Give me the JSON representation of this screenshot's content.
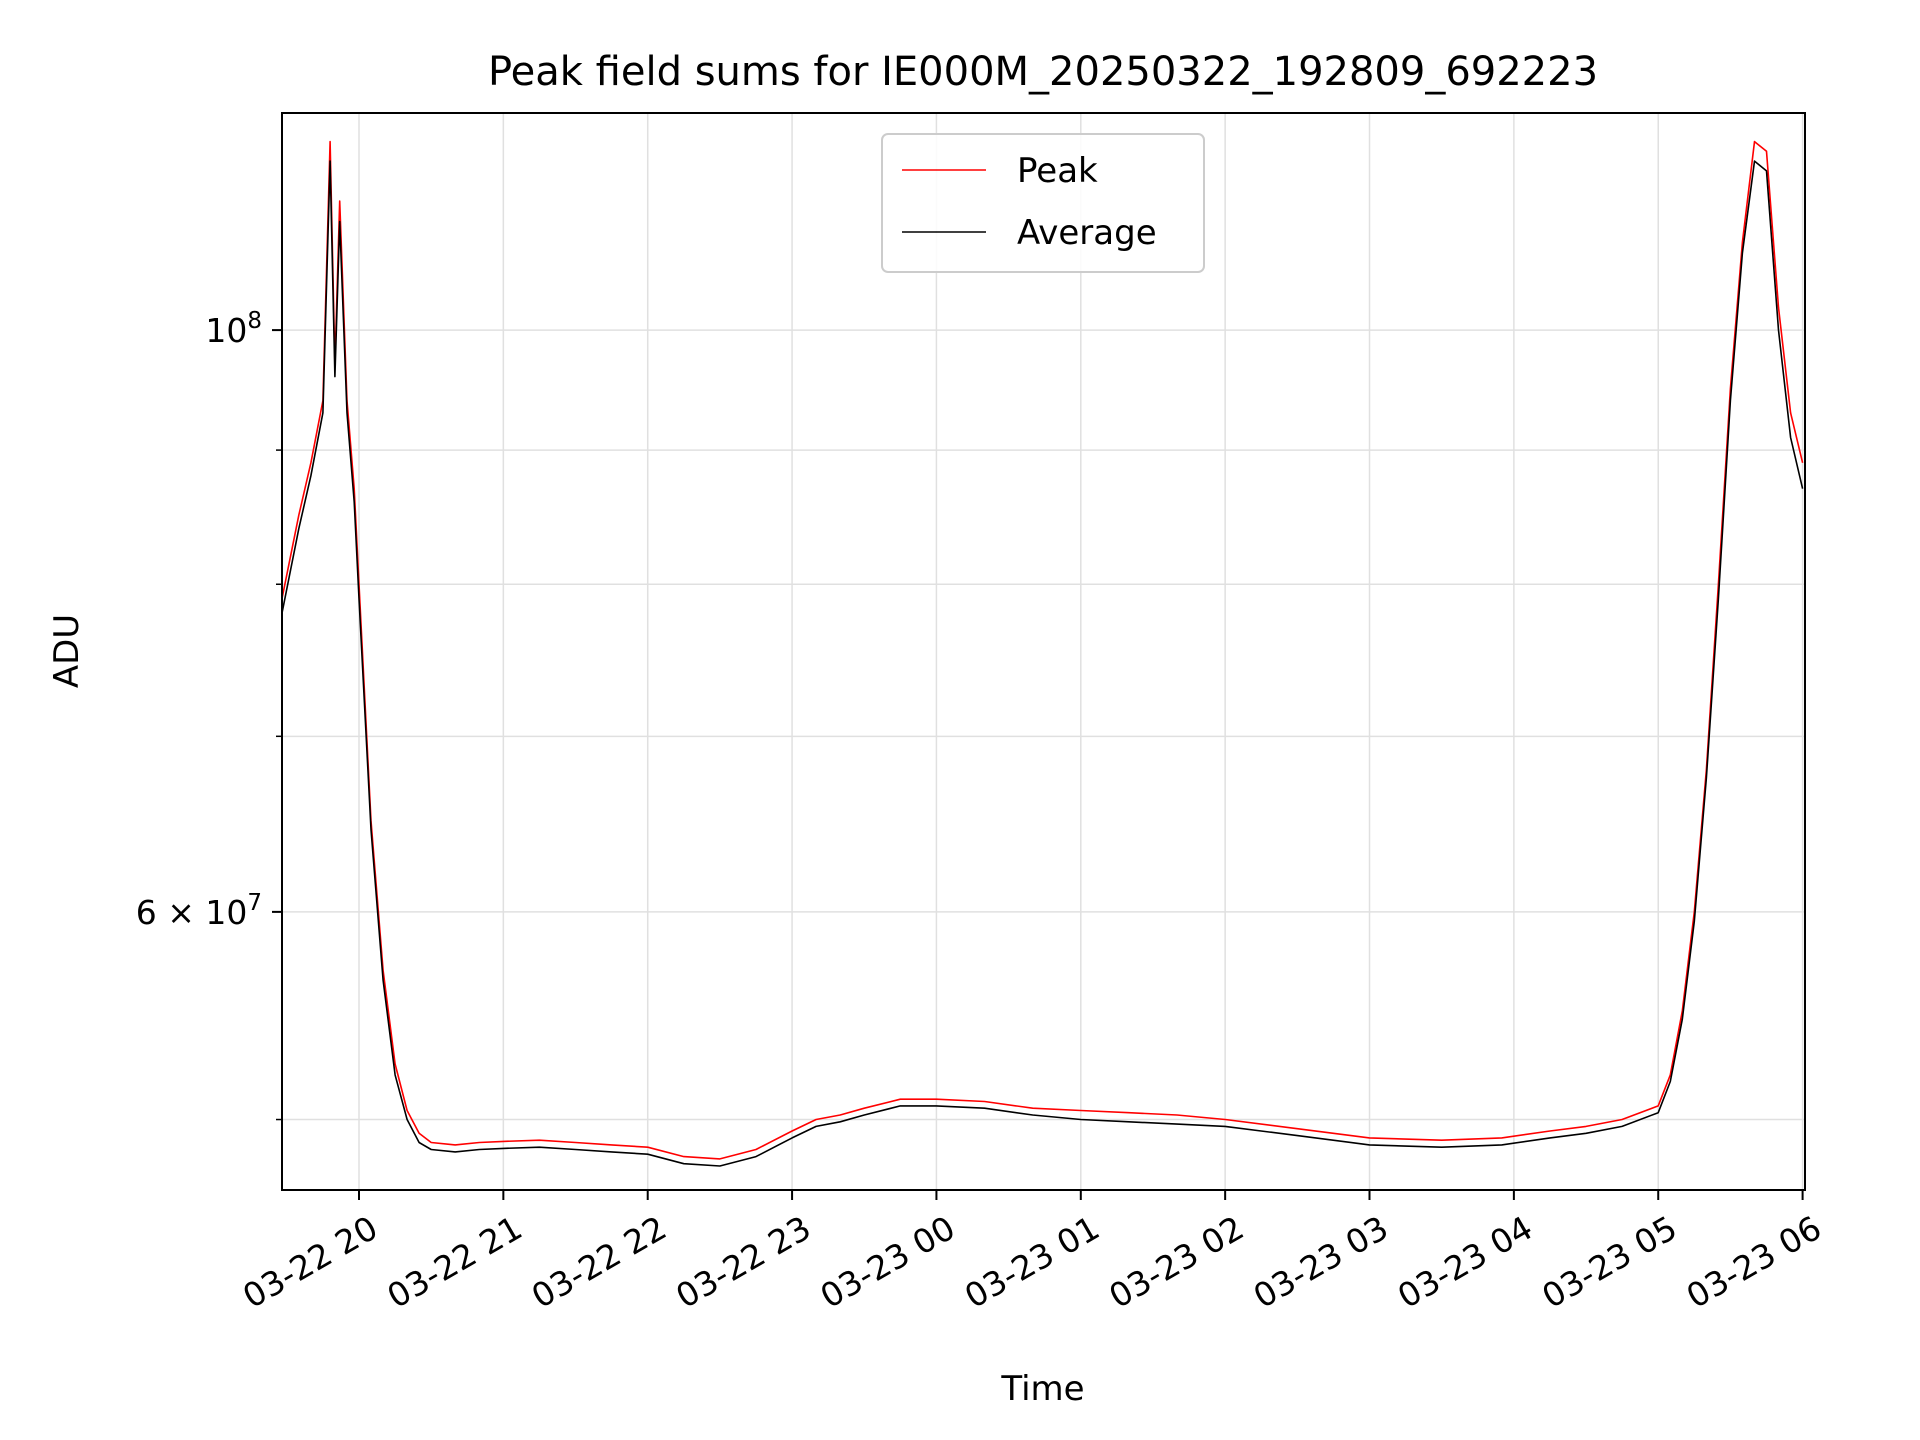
{
  "chart_data": {
    "type": "line",
    "title": "Peak field sums for IE000M_20250322_192809_692223",
    "xlabel": "Time",
    "ylabel": "ADU",
    "yscale": "log",
    "ylim": [
      47000000,
      121000000
    ],
    "xlim": [
      "2025-03-22T19:28",
      "2025-03-23T06:01"
    ],
    "grid": true,
    "legend_position": "upper center",
    "x_ticks": [
      {
        "t": "2025-03-22T20:00",
        "label": "03-22 20"
      },
      {
        "t": "2025-03-22T21:00",
        "label": "03-22 21"
      },
      {
        "t": "2025-03-22T22:00",
        "label": "03-22 22"
      },
      {
        "t": "2025-03-22T23:00",
        "label": "03-22 23"
      },
      {
        "t": "2025-03-23T00:00",
        "label": "03-23 00"
      },
      {
        "t": "2025-03-23T01:00",
        "label": "03-23 01"
      },
      {
        "t": "2025-03-23T02:00",
        "label": "03-23 02"
      },
      {
        "t": "2025-03-23T03:00",
        "label": "03-23 03"
      },
      {
        "t": "2025-03-23T04:00",
        "label": "03-23 04"
      },
      {
        "t": "2025-03-23T05:00",
        "label": "03-23 05"
      },
      {
        "t": "2025-03-23T06:00",
        "label": "03-23 06"
      }
    ],
    "y_major_ticks": [
      {
        "value": 60000000,
        "label": "6 × 10",
        "exp": "7"
      },
      {
        "value": 100000000,
        "label": "10",
        "exp": "8"
      }
    ],
    "y_minor_ticks": [
      50000000,
      70000000,
      80000000,
      90000000
    ],
    "series": [
      {
        "name": "Peak",
        "color": "#ff0000",
        "x": [
          "2025-03-22T19:28",
          "2025-03-22T19:35",
          "2025-03-22T19:40",
          "2025-03-22T19:45",
          "2025-03-22T19:48",
          "2025-03-22T19:50",
          "2025-03-22T19:52",
          "2025-03-22T19:55",
          "2025-03-22T19:58",
          "2025-03-22T20:00",
          "2025-03-22T20:05",
          "2025-03-22T20:10",
          "2025-03-22T20:15",
          "2025-03-22T20:20",
          "2025-03-22T20:25",
          "2025-03-22T20:30",
          "2025-03-22T20:40",
          "2025-03-22T20:50",
          "2025-03-22T21:00",
          "2025-03-22T21:15",
          "2025-03-22T21:30",
          "2025-03-22T21:45",
          "2025-03-22T22:00",
          "2025-03-22T22:15",
          "2025-03-22T22:30",
          "2025-03-22T22:45",
          "2025-03-22T23:00",
          "2025-03-22T23:10",
          "2025-03-22T23:20",
          "2025-03-22T23:30",
          "2025-03-22T23:45",
          "2025-03-23T00:00",
          "2025-03-23T00:20",
          "2025-03-23T00:40",
          "2025-03-23T01:00",
          "2025-03-23T01:20",
          "2025-03-23T01:40",
          "2025-03-23T02:00",
          "2025-03-23T02:30",
          "2025-03-23T03:00",
          "2025-03-23T03:30",
          "2025-03-23T03:55",
          "2025-03-23T04:15",
          "2025-03-23T04:30",
          "2025-03-23T04:45",
          "2025-03-23T05:00",
          "2025-03-23T05:05",
          "2025-03-23T05:10",
          "2025-03-23T05:15",
          "2025-03-23T05:20",
          "2025-03-23T05:25",
          "2025-03-23T05:30",
          "2025-03-23T05:35",
          "2025-03-23T05:40",
          "2025-03-23T05:45",
          "2025-03-23T05:50",
          "2025-03-23T05:55",
          "2025-03-23T06:00"
        ],
        "y": [
          79000000,
          85000000,
          89000000,
          94000000,
          118000000,
          97000000,
          112000000,
          94000000,
          87000000,
          80000000,
          65000000,
          57000000,
          52500000,
          50400000,
          49400000,
          49000000,
          48900000,
          49000000,
          49050000,
          49100000,
          49000000,
          48900000,
          48800000,
          48400000,
          48300000,
          48700000,
          49500000,
          50000000,
          50200000,
          50500000,
          50900000,
          50900000,
          50800000,
          50500000,
          50400000,
          50300000,
          50200000,
          50000000,
          49600000,
          49200000,
          49100000,
          49200000,
          49500000,
          49700000,
          50000000,
          50600000,
          52000000,
          55000000,
          60000000,
          68000000,
          80000000,
          95000000,
          108000000,
          118000000,
          117000000,
          102000000,
          93000000,
          89000000
        ]
      },
      {
        "name": "Average",
        "color": "#000000",
        "x": [
          "2025-03-22T19:28",
          "2025-03-22T19:35",
          "2025-03-22T19:40",
          "2025-03-22T19:45",
          "2025-03-22T19:48",
          "2025-03-22T19:50",
          "2025-03-22T19:52",
          "2025-03-22T19:55",
          "2025-03-22T19:58",
          "2025-03-22T20:00",
          "2025-03-22T20:05",
          "2025-03-22T20:10",
          "2025-03-22T20:15",
          "2025-03-22T20:20",
          "2025-03-22T20:25",
          "2025-03-22T20:30",
          "2025-03-22T20:40",
          "2025-03-22T20:50",
          "2025-03-22T21:00",
          "2025-03-22T21:15",
          "2025-03-22T21:30",
          "2025-03-22T21:45",
          "2025-03-22T22:00",
          "2025-03-22T22:15",
          "2025-03-22T22:30",
          "2025-03-22T22:45",
          "2025-03-22T23:00",
          "2025-03-22T23:10",
          "2025-03-22T23:20",
          "2025-03-22T23:30",
          "2025-03-22T23:45",
          "2025-03-23T00:00",
          "2025-03-23T00:20",
          "2025-03-23T00:40",
          "2025-03-23T01:00",
          "2025-03-23T01:20",
          "2025-03-23T01:40",
          "2025-03-23T02:00",
          "2025-03-23T02:30",
          "2025-03-23T03:00",
          "2025-03-23T03:30",
          "2025-03-23T03:55",
          "2025-03-23T04:15",
          "2025-03-23T04:30",
          "2025-03-23T04:45",
          "2025-03-23T05:00",
          "2025-03-23T05:05",
          "2025-03-23T05:10",
          "2025-03-23T05:15",
          "2025-03-23T05:20",
          "2025-03-23T05:25",
          "2025-03-23T05:30",
          "2025-03-23T05:35",
          "2025-03-23T05:40",
          "2025-03-23T05:45",
          "2025-03-23T05:50",
          "2025-03-23T05:55",
          "2025-03-23T06:00"
        ],
        "y": [
          78000000,
          84000000,
          88000000,
          93000000,
          116000000,
          96000000,
          110000000,
          93000000,
          86000000,
          79000000,
          64500000,
          56500000,
          52000000,
          50000000,
          49000000,
          48700000,
          48600000,
          48700000,
          48750000,
          48800000,
          48700000,
          48600000,
          48500000,
          48100000,
          48000000,
          48400000,
          49200000,
          49700000,
          49900000,
          50200000,
          50600000,
          50600000,
          50500000,
          50200000,
          50000000,
          49900000,
          49800000,
          49700000,
          49300000,
          48900000,
          48800000,
          48900000,
          49200000,
          49400000,
          49700000,
          50300000,
          51700000,
          54600000,
          59500000,
          67500000,
          79000000,
          94000000,
          107000000,
          116000000,
          115000000,
          100000000,
          91000000,
          87000000
        ]
      }
    ]
  }
}
